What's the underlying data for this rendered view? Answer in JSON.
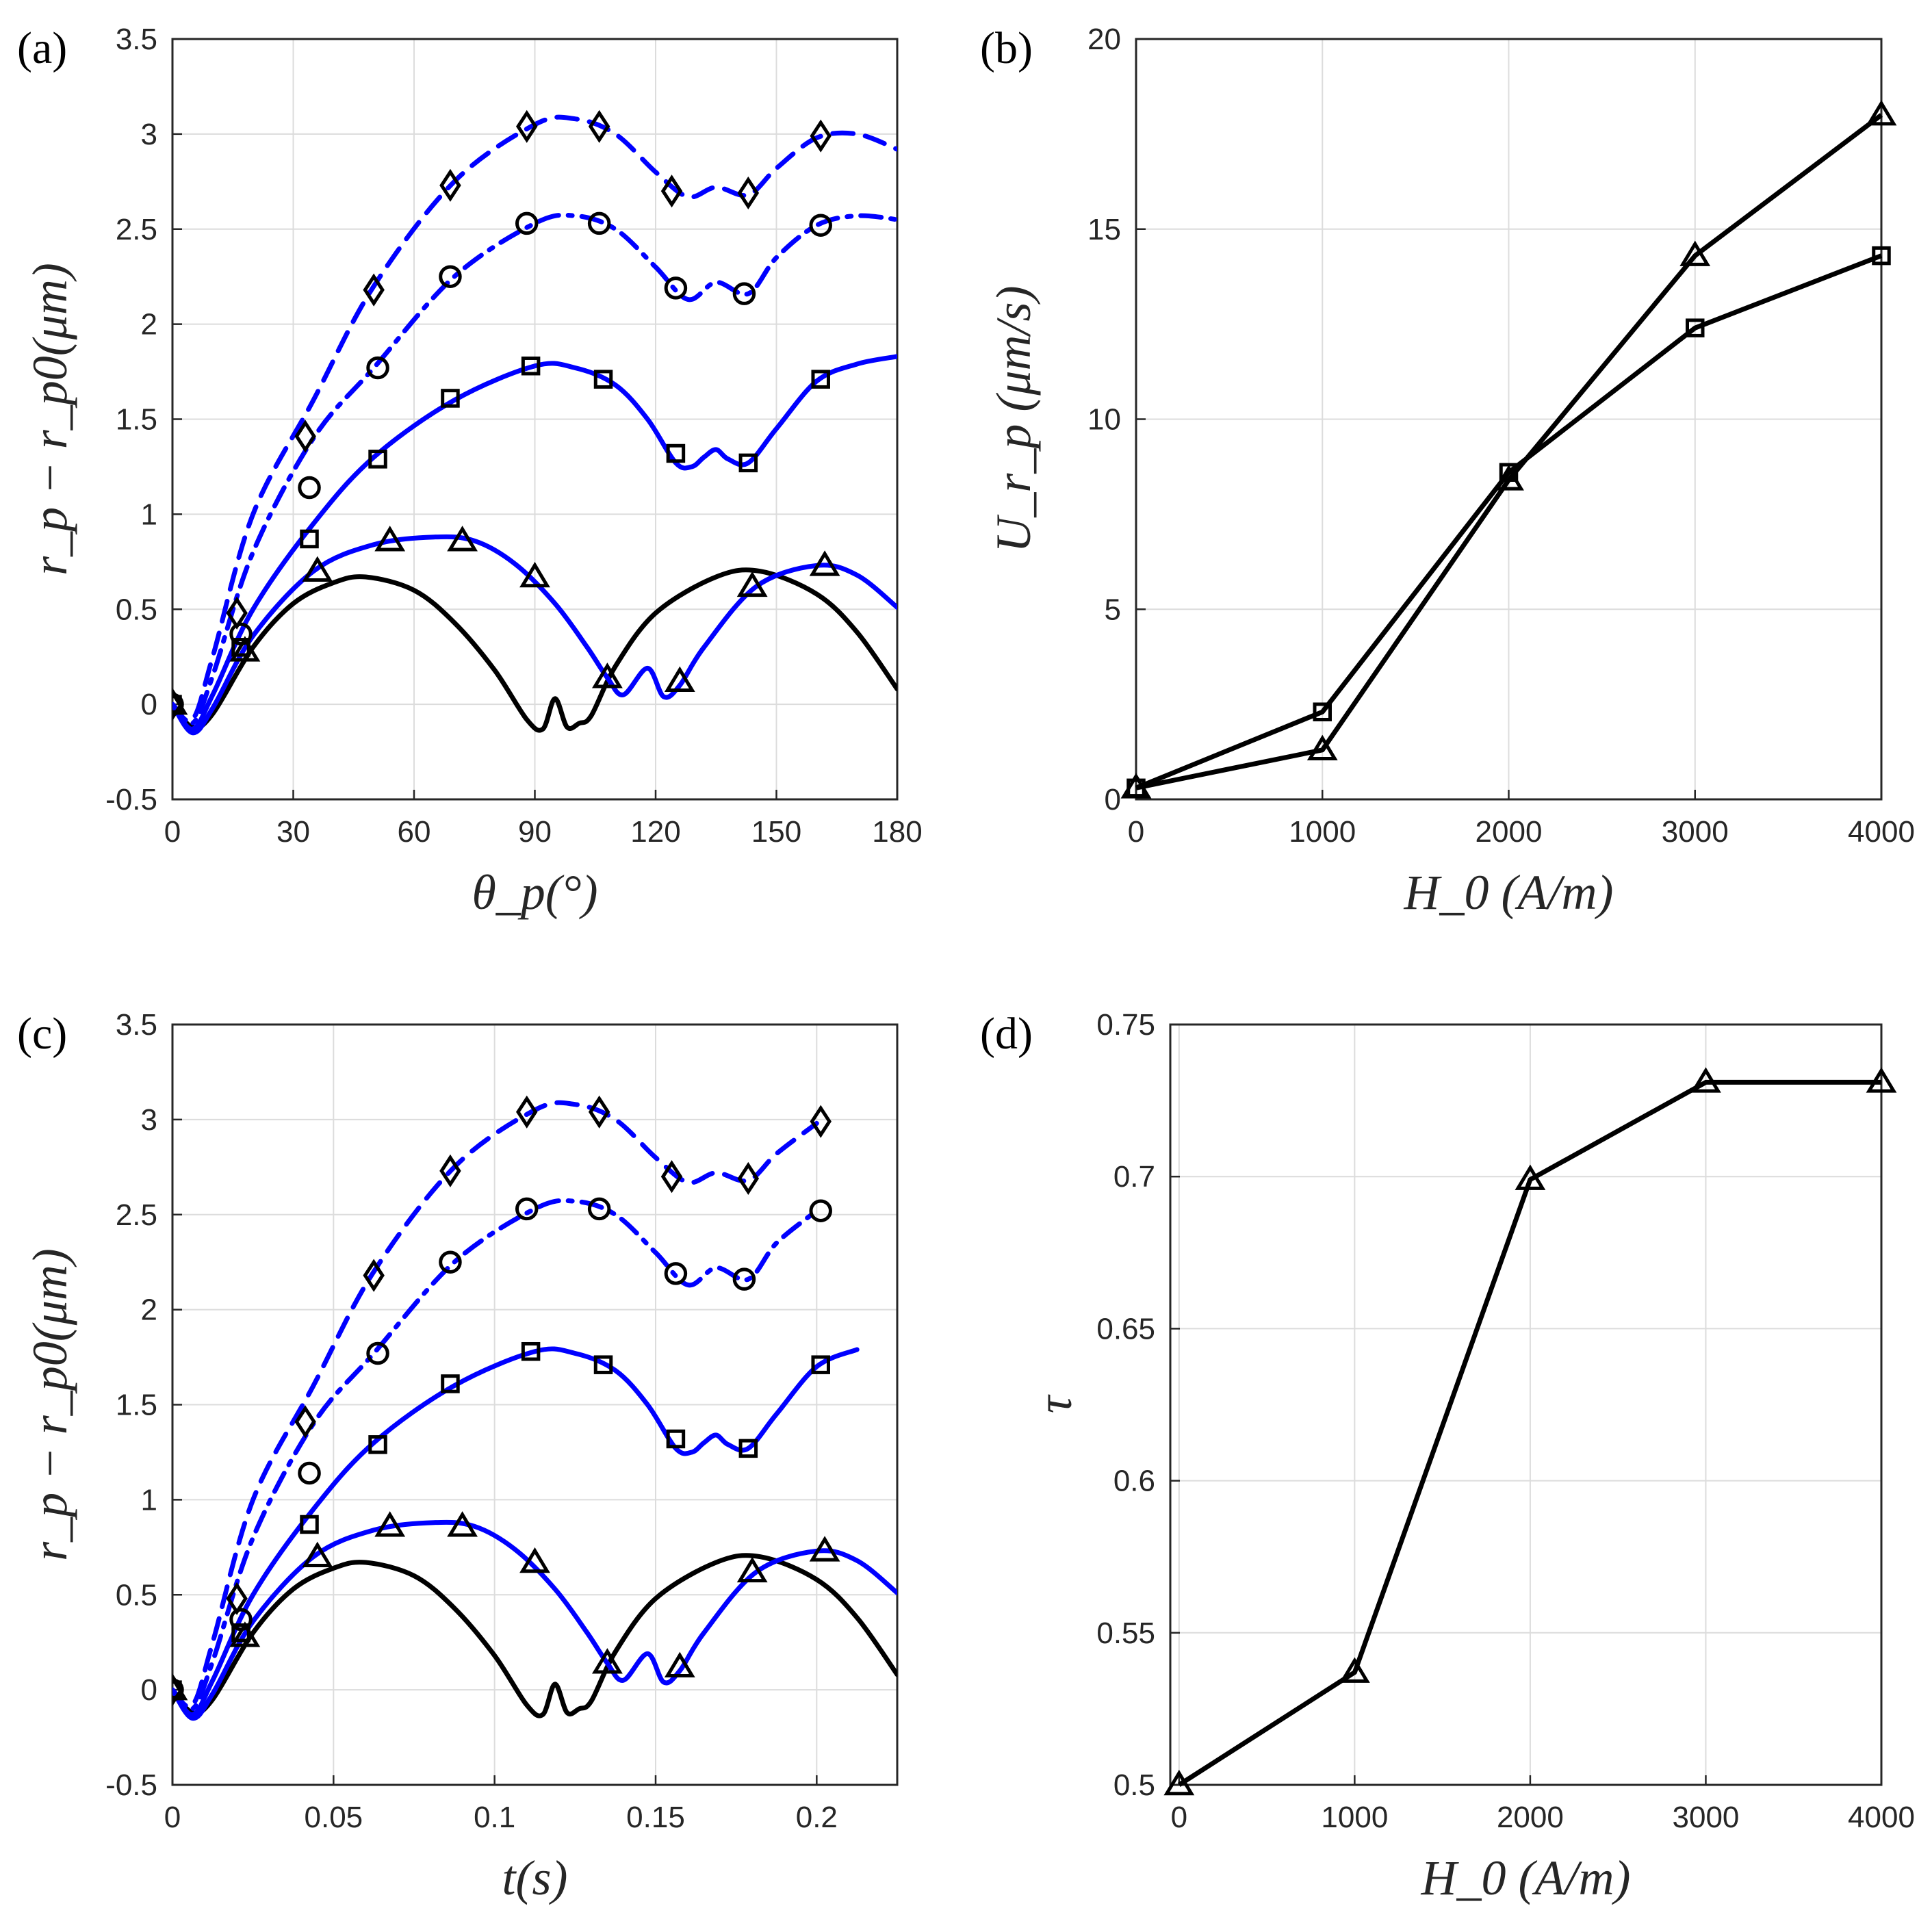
{
  "chart_data": [
    {
      "id": "a",
      "panel_label": "(a)",
      "type": "line",
      "xlabel": "θ_p(°)",
      "ylabel": "r_p − r_p0(μm)",
      "xlim": [
        0,
        180
      ],
      "ylim": [
        -0.5,
        3.5
      ],
      "xticks": [
        "0",
        "30",
        "60",
        "90",
        "120",
        "150",
        "180"
      ],
      "yticks": [
        "-0.5",
        "0",
        "0.5",
        "1",
        "1.5",
        "2",
        "2.5",
        "3",
        "3.5"
      ],
      "grid": true,
      "colors": {
        "reference": "#000000",
        "series": "#0000ff"
      },
      "reference_curve": {
        "x": [
          0,
          5,
          10,
          20,
          30,
          40,
          48,
          60,
          70,
          80,
          88,
          92,
          95,
          98,
          101,
          104,
          110,
          120,
          135,
          146,
          160,
          170,
          180
        ],
        "y": [
          0,
          -0.12,
          -0.05,
          0.3,
          0.53,
          0.64,
          0.67,
          0.6,
          0.43,
          0.18,
          -0.08,
          -0.13,
          0.03,
          -0.12,
          -0.1,
          -0.06,
          0.2,
          0.48,
          0.67,
          0.7,
          0.58,
          0.38,
          0.08
        ]
      },
      "series": [
        {
          "name": "triangle",
          "marker": "triangle",
          "dash": "solid",
          "x": [
            0,
            5,
            10,
            20,
            35,
            50,
            65,
            75,
            85,
            95,
            103,
            108,
            112,
            118,
            122,
            126,
            132,
            145,
            160,
            170,
            180
          ],
          "y": [
            0,
            -0.15,
            -0.02,
            0.36,
            0.7,
            0.84,
            0.88,
            0.86,
            0.74,
            0.53,
            0.3,
            0.14,
            0.05,
            0.19,
            0.04,
            0.1,
            0.3,
            0.62,
            0.73,
            0.68,
            0.51
          ],
          "marker_x": [
            0,
            18,
            36,
            54,
            72,
            90,
            108,
            126,
            144,
            162
          ],
          "marker_y": [
            0.0,
            0.28,
            0.7,
            0.86,
            0.86,
            0.67,
            0.14,
            0.12,
            0.62,
            0.73
          ]
        },
        {
          "name": "square",
          "marker": "square",
          "dash": "solid",
          "x": [
            0,
            5,
            10,
            20,
            35,
            50,
            70,
            90,
            100,
            110,
            118,
            125,
            129,
            132,
            135,
            138,
            143,
            150,
            160,
            170,
            180
          ],
          "y": [
            0,
            -0.13,
            0.05,
            0.5,
            0.95,
            1.3,
            1.6,
            1.78,
            1.77,
            1.68,
            1.5,
            1.27,
            1.25,
            1.3,
            1.34,
            1.29,
            1.27,
            1.45,
            1.7,
            1.79,
            1.83
          ],
          "marker_x": [
            0,
            17,
            34,
            51,
            69,
            89,
            107,
            125,
            143,
            161
          ],
          "marker_y": [
            0.0,
            0.3,
            0.87,
            1.29,
            1.61,
            1.78,
            1.71,
            1.32,
            1.27,
            1.71
          ]
        },
        {
          "name": "circle",
          "marker": "circle",
          "dash": "dashdot",
          "x": [
            0,
            5,
            10,
            20,
            35,
            50,
            70,
            90,
            100,
            110,
            120,
            128,
            135,
            143,
            150,
            160,
            170,
            180
          ],
          "y": [
            0,
            -0.1,
            0.15,
            0.8,
            1.4,
            1.77,
            2.25,
            2.53,
            2.57,
            2.5,
            2.3,
            2.13,
            2.22,
            2.16,
            2.35,
            2.52,
            2.57,
            2.55
          ],
          "marker_x": [
            0,
            17,
            34,
            51,
            69,
            88,
            106,
            125,
            142,
            161
          ],
          "marker_y": [
            0.0,
            0.37,
            1.14,
            1.77,
            2.25,
            2.53,
            2.53,
            2.19,
            2.16,
            2.52
          ],
          "line_points": 18
        },
        {
          "name": "diamond",
          "marker": "diamond",
          "dash": "dashed",
          "x": [
            0,
            5,
            10,
            20,
            35,
            50,
            70,
            90,
            100,
            110,
            120,
            128,
            135,
            143,
            150,
            160,
            170,
            180
          ],
          "y": [
            0,
            -0.08,
            0.25,
            1.0,
            1.6,
            2.2,
            2.75,
            3.05,
            3.08,
            3.0,
            2.8,
            2.67,
            2.72,
            2.68,
            2.82,
            2.98,
            3.0,
            2.92
          ],
          "marker_x": [
            0,
            16,
            33,
            50,
            69,
            88,
            106,
            124,
            143,
            161
          ],
          "marker_y": [
            0.0,
            0.48,
            1.41,
            2.18,
            2.73,
            3.04,
            3.04,
            2.7,
            2.69,
            2.99
          ]
        }
      ]
    },
    {
      "id": "b",
      "panel_label": "(b)",
      "type": "line",
      "xlabel": "H_0 (A/m)",
      "ylabel": "U_r_p (μm/s)",
      "xlim": [
        0,
        4000
      ],
      "ylim": [
        0,
        20
      ],
      "xticks": [
        "0",
        "1000",
        "2000",
        "3000",
        "4000"
      ],
      "yticks": [
        "0",
        "5",
        "10",
        "15",
        "20"
      ],
      "grid": true,
      "series": [
        {
          "name": "triangle",
          "marker": "triangle",
          "x": [
            0,
            1000,
            2000,
            3000,
            4000
          ],
          "y": [
            0.3,
            1.3,
            8.4,
            14.3,
            18.0
          ]
        },
        {
          "name": "square",
          "marker": "square",
          "x": [
            0,
            1000,
            2000,
            3000,
            4000
          ],
          "y": [
            0.3,
            2.3,
            8.6,
            12.4,
            14.3
          ]
        }
      ]
    },
    {
      "id": "c",
      "panel_label": "(c)",
      "type": "line",
      "xlabel": "t(s)",
      "ylabel": "r_p − r_p0(μm)",
      "xlim": [
        0,
        0.225
      ],
      "ylim": [
        -0.5,
        3.5
      ],
      "xticks": [
        "0",
        "0.05",
        "0.1",
        "0.15",
        "0.2"
      ],
      "yticks": [
        "-0.5",
        "0",
        "0.5",
        "1",
        "1.5",
        "2",
        "2.5",
        "3",
        "3.5"
      ],
      "grid": true,
      "x_scale_from_theta": 0.00125,
      "series_end_x": {
        "reference": 0.225,
        "triangle": 0.225,
        "square": 0.215,
        "circle": 0.207,
        "diamond": 0.203
      }
    },
    {
      "id": "d",
      "panel_label": "(d)",
      "type": "line",
      "xlabel": "H_0 (A/m)",
      "ylabel": "τ",
      "xlim": [
        -50,
        4000
      ],
      "ylim": [
        0.5,
        0.75
      ],
      "xticks": [
        "0",
        "1000",
        "2000",
        "3000",
        "4000"
      ],
      "yticks": [
        "0.5",
        "0.55",
        "0.6",
        "0.65",
        "0.7",
        "0.75"
      ],
      "grid": true,
      "series": [
        {
          "name": "triangle",
          "marker": "triangle",
          "x": [
            0,
            1000,
            2000,
            3000,
            4000
          ],
          "y": [
            0.5,
            0.537,
            0.699,
            0.731,
            0.731
          ]
        }
      ]
    }
  ]
}
